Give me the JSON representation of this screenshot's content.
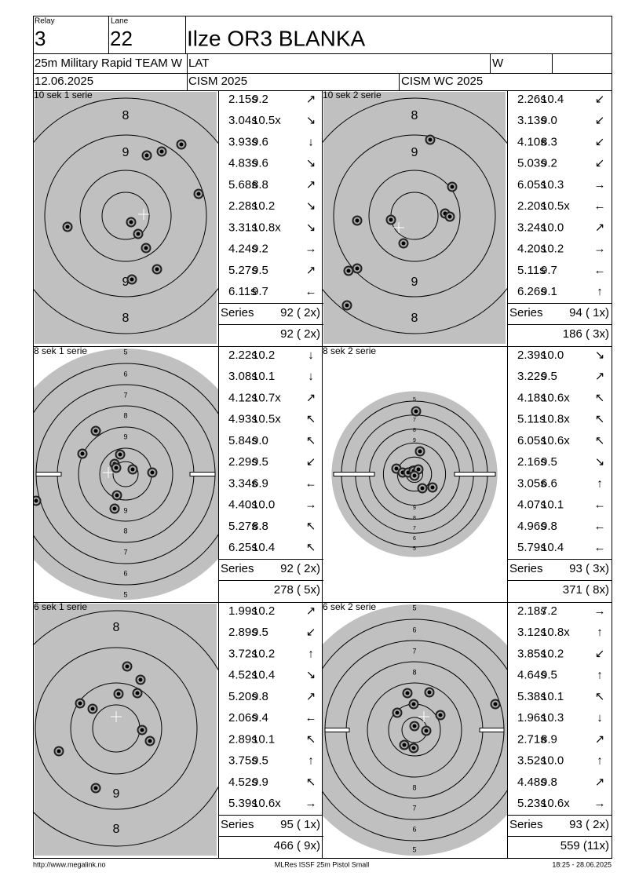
{
  "header": {
    "relay_label": "Relay",
    "relay": "3",
    "lane_label": "Lane",
    "lane": "22",
    "name": "Ilze OR3 BLANKA",
    "event": "25m Military Rapid TEAM W",
    "nation": "LAT",
    "gender": "W",
    "date": "12.06.2025",
    "competition": "CISM 2025",
    "match": "CISM WC 2025"
  },
  "series_label": "Series",
  "panels": [
    {
      "title": "10 sek 1 serie",
      "ring_labels": [
        "8",
        "9",
        "9",
        "8"
      ],
      "shots": [
        {
          "time": "2.15s",
          "score": "9.2",
          "dir": "↗"
        },
        {
          "time": "3.04s",
          "score": "10.5x",
          "dir": "↘"
        },
        {
          "time": "3.93s",
          "score": "9.6",
          "dir": "↓"
        },
        {
          "time": "4.83s",
          "score": "9.6",
          "dir": "↘"
        },
        {
          "time": "5.68s",
          "score": "8.8",
          "dir": "↗"
        },
        {
          "time": "2.28s",
          "score": "10.2",
          "dir": "↘"
        },
        {
          "time": "3.31s",
          "score": "10.8x",
          "dir": "↘"
        },
        {
          "time": "4.24s",
          "score": "9.2",
          "dir": "→"
        },
        {
          "time": "5.27s",
          "score": "9.5",
          "dir": "↗"
        },
        {
          "time": "6.11s",
          "score": "9.7",
          "dir": "←"
        }
      ],
      "series_total": "92 ( 2x)",
      "running_total": "92 ( 2x)"
    },
    {
      "title": "10 sek 2 serie",
      "ring_labels": [
        "8",
        "9",
        "9",
        "8"
      ],
      "shots": [
        {
          "time": "2.26s",
          "score": "10.4",
          "dir": "↙"
        },
        {
          "time": "3.13s",
          "score": "9.0",
          "dir": "↙"
        },
        {
          "time": "4.10s",
          "score": "8.3",
          "dir": "↙"
        },
        {
          "time": "5.03s",
          "score": "9.2",
          "dir": "↙"
        },
        {
          "time": "6.05s",
          "score": "10.3",
          "dir": "→"
        },
        {
          "time": "2.20s",
          "score": "10.5x",
          "dir": "←"
        },
        {
          "time": "3.24s",
          "score": "10.0",
          "dir": "↗"
        },
        {
          "time": "4.20s",
          "score": "10.2",
          "dir": "→"
        },
        {
          "time": "5.11s",
          "score": "9.7",
          "dir": "←"
        },
        {
          "time": "6.26s",
          "score": "9.1",
          "dir": "↑"
        }
      ],
      "series_total": "94 ( 1x)",
      "running_total": "186 ( 3x)"
    },
    {
      "title": "8 sek 1 serie",
      "ring_labels": [
        "5",
        "6",
        "7",
        "8",
        "9",
        "9",
        "8",
        "7",
        "6",
        "5"
      ],
      "shots": [
        {
          "time": "2.22s",
          "score": "10.2",
          "dir": "↓"
        },
        {
          "time": "3.08s",
          "score": "10.1",
          "dir": "↓"
        },
        {
          "time": "4.12s",
          "score": "10.7x",
          "dir": "↗"
        },
        {
          "time": "4.93s",
          "score": "10.5x",
          "dir": "↖"
        },
        {
          "time": "5.84s",
          "score": "9.0",
          "dir": "↖"
        },
        {
          "time": "2.29s",
          "score": "9.5",
          "dir": "↙"
        },
        {
          "time": "3.34s",
          "score": "6.9",
          "dir": "←"
        },
        {
          "time": "4.40s",
          "score": "10.0",
          "dir": "→"
        },
        {
          "time": "5.27s",
          "score": "8.8",
          "dir": "↖"
        },
        {
          "time": "6.25s",
          "score": "10.4",
          "dir": "↖"
        }
      ],
      "series_total": "92 ( 2x)",
      "running_total": "278 ( 5x)"
    },
    {
      "title": "8 sek 2 serie",
      "ring_labels": [
        "5",
        "6",
        "7",
        "8",
        "9",
        "9",
        "8",
        "7",
        "6",
        "5"
      ],
      "shots": [
        {
          "time": "2.39s",
          "score": "10.0",
          "dir": "↘"
        },
        {
          "time": "3.22s",
          "score": "9.5",
          "dir": "↗"
        },
        {
          "time": "4.18s",
          "score": "10.6x",
          "dir": "↖"
        },
        {
          "time": "5.11s",
          "score": "10.8x",
          "dir": "↖"
        },
        {
          "time": "6.05s",
          "score": "10.6x",
          "dir": "↖"
        },
        {
          "time": "2.16s",
          "score": "9.5",
          "dir": "↘"
        },
        {
          "time": "3.05s",
          "score": "6.6",
          "dir": "↑"
        },
        {
          "time": "4.07s",
          "score": "10.1",
          "dir": "←"
        },
        {
          "time": "4.96s",
          "score": "9.8",
          "dir": "←"
        },
        {
          "time": "5.79s",
          "score": "10.4",
          "dir": "←"
        }
      ],
      "series_total": "93 ( 3x)",
      "running_total": "371 ( 8x)"
    },
    {
      "title": "6 sek 1 serie",
      "ring_labels": [
        "8",
        "9",
        "8"
      ],
      "shots": [
        {
          "time": "1.99s",
          "score": "10.2",
          "dir": "↗"
        },
        {
          "time": "2.89s",
          "score": "9.5",
          "dir": "↙"
        },
        {
          "time": "3.72s",
          "score": "10.2",
          "dir": "↑"
        },
        {
          "time": "4.52s",
          "score": "10.4",
          "dir": "↘"
        },
        {
          "time": "5.20s",
          "score": "9.8",
          "dir": "↗"
        },
        {
          "time": "2.06s",
          "score": "9.4",
          "dir": "←"
        },
        {
          "time": "2.89s",
          "score": "10.1",
          "dir": "↖"
        },
        {
          "time": "3.75s",
          "score": "9.5",
          "dir": "↑"
        },
        {
          "time": "4.52s",
          "score": "9.9",
          "dir": "↖"
        },
        {
          "time": "5.39s",
          "score": "10.6x",
          "dir": "→"
        }
      ],
      "series_total": "95 ( 1x)",
      "running_total": "466 ( 9x)"
    },
    {
      "title": "6 sek 2 serie",
      "ring_labels": [
        "5",
        "6",
        "7",
        "8",
        "8",
        "7",
        "6",
        "5"
      ],
      "shots": [
        {
          "time": "2.18s",
          "score": "7.2",
          "dir": "→"
        },
        {
          "time": "3.12s",
          "score": "10.8x",
          "dir": "↑"
        },
        {
          "time": "3.85s",
          "score": "10.2",
          "dir": "↙"
        },
        {
          "time": "4.64s",
          "score": "9.5",
          "dir": "↑"
        },
        {
          "time": "5.38s",
          "score": "10.1",
          "dir": "↖"
        },
        {
          "time": "1.96s",
          "score": "10.3",
          "dir": "↓"
        },
        {
          "time": "2.71s",
          "score": "8.9",
          "dir": "↗"
        },
        {
          "time": "3.52s",
          "score": "10.0",
          "dir": "↑"
        },
        {
          "time": "4.48s",
          "score": "9.8",
          "dir": "↗"
        },
        {
          "time": "5.23s",
          "score": "10.6x",
          "dir": "→"
        }
      ],
      "series_total": "93 ( 2x)",
      "running_total": "559 (11x)"
    }
  ],
  "footer": {
    "url": "http://www.megalink.no",
    "software": "MLRes ISSF 25m Pistol Small",
    "timestamp": "18:25 - 28.06.2025"
  }
}
